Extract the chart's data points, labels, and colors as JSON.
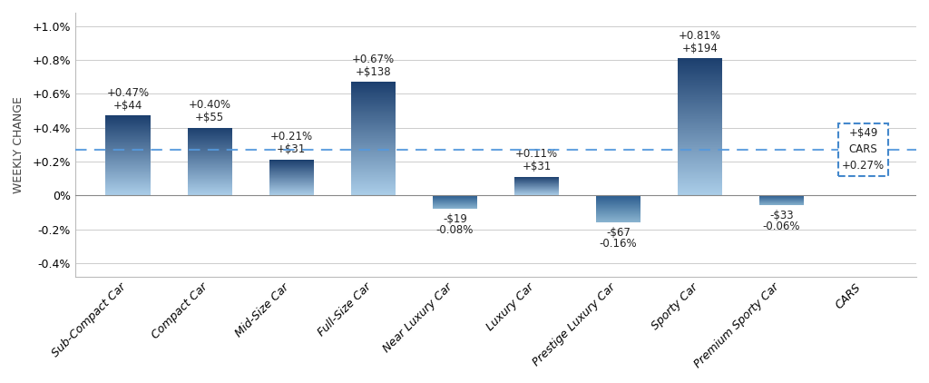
{
  "categories": [
    "Sub-Compact Car",
    "Compact Car",
    "Mid-Size Car",
    "Full-Size Car",
    "Near Luxury Car",
    "Luxury Car",
    "Prestige Luxury Car",
    "Sporty Car",
    "Premium Sporty Car",
    "CARS"
  ],
  "pct_values": [
    0.47,
    0.4,
    0.21,
    0.67,
    -0.08,
    0.11,
    -0.16,
    0.81,
    -0.06,
    0.27
  ],
  "dollar_labels": [
    "+$44",
    "+$55",
    "+$31",
    "+$138",
    "-$19",
    "+$31",
    "-$67",
    "+$194",
    "-$33",
    "+$49"
  ],
  "pct_labels": [
    "+0.47%",
    "+0.40%",
    "+0.21%",
    "+0.67%",
    "-0.08%",
    "+0.11%",
    "-0.16%",
    "+0.81%",
    "-0.06%",
    "+0.27%"
  ],
  "reference_line": 0.27,
  "ylim": [
    -0.48,
    1.08
  ],
  "yticks": [
    -0.4,
    -0.2,
    0.0,
    0.2,
    0.4,
    0.6,
    0.8,
    1.0
  ],
  "ytick_labels": [
    "-0.4%",
    "-0.2%",
    "0%",
    "+0.2%",
    "+0.4%",
    "+0.6%",
    "+0.8%",
    "+1.0%"
  ],
  "bar_color_top": "#1c3f6e",
  "bar_color_bottom": "#aacde8",
  "neg_bar_color_top": "#2b5c8e",
  "neg_bar_color_bottom": "#8ab4d0",
  "ylabel": "WEEKLY CHANGE",
  "background_color": "#ffffff",
  "grid_color": "#cccccc",
  "dashed_line_color": "#5599dd",
  "cars_box_color": "#4488cc",
  "label_fontsize": 8.5,
  "tick_fontsize": 9,
  "bar_width": 0.55
}
